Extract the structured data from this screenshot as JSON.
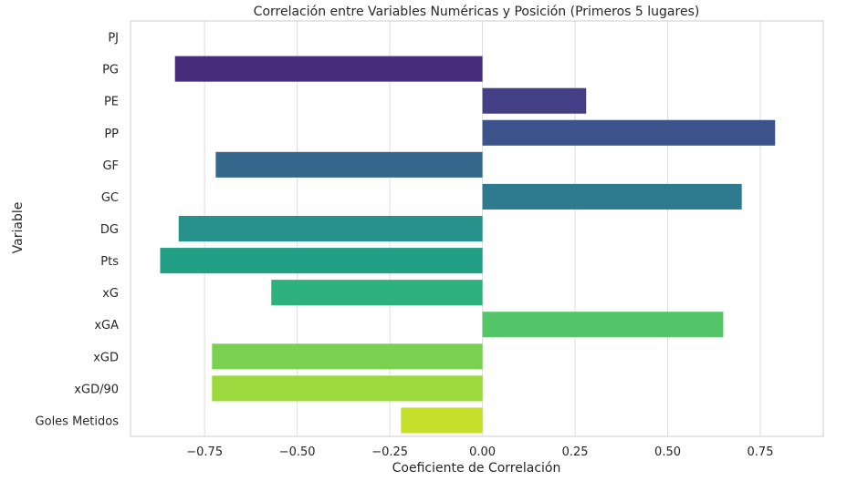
{
  "chart_data": {
    "type": "bar",
    "orientation": "horizontal",
    "title": "Correlación entre Variables Numéricas y Posición (Primeros 5 lugares)",
    "xlabel": "Coeficiente de Correlación",
    "ylabel": "Variable",
    "xlim": [
      -0.95,
      0.92
    ],
    "x_ticks": [
      -0.75,
      -0.5,
      -0.25,
      0.0,
      0.25,
      0.5,
      0.75
    ],
    "x_tick_labels": [
      "−0.75",
      "−0.50",
      "−0.25",
      "0.00",
      "0.25",
      "0.50",
      "0.75"
    ],
    "grid": "vertical",
    "categories": [
      "PJ",
      "PG",
      "PE",
      "PP",
      "GF",
      "GC",
      "DG",
      "Pts",
      "xG",
      "xGA",
      "xGD",
      "xGD/90",
      "Goles Metidos"
    ],
    "values": [
      0.0,
      -0.83,
      0.28,
      0.79,
      -0.72,
      0.7,
      -0.82,
      -0.87,
      -0.57,
      0.65,
      -0.73,
      -0.73,
      -0.22
    ],
    "colors": [
      "#482878",
      "#472d7b",
      "#423f85",
      "#3b528b",
      "#36688d",
      "#2e7a8e",
      "#27918b",
      "#22a085",
      "#2db27d",
      "#54c568",
      "#7ad151",
      "#9bd93c",
      "#c5df2a"
    ]
  }
}
